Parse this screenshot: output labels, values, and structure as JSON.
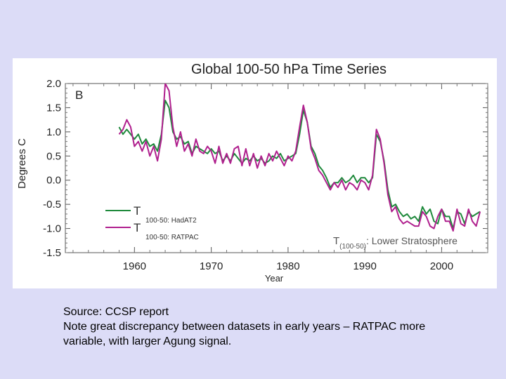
{
  "caption": {
    "line1": "Source: CCSP report",
    "line2": "Note great discrepancy between datasets in early years – RATPAC more",
    "line3": "variable, with larger Agung signal."
  },
  "chart_data": {
    "type": "line",
    "title": "Global 100-50 hPa Time Series",
    "panel_label": "B",
    "xlabel": "Year",
    "ylabel": "Degrees C",
    "xlim": [
      1951,
      2006
    ],
    "ylim": [
      -1.5,
      2.0
    ],
    "x_ticks": [
      1960,
      1970,
      1980,
      1990,
      2000
    ],
    "y_ticks": [
      2.0,
      1.5,
      1.0,
      0.5,
      0.0,
      -0.5,
      -1.0,
      -1.5
    ],
    "y_tick_labels": [
      "2.0",
      "1.5",
      "1.0",
      "0.5",
      "0.0",
      "-0.5",
      "-1.0",
      "-1.5"
    ],
    "grid": false,
    "legend_position": "bottom-left",
    "annotation": {
      "main": "T",
      "sub": "(100-50)",
      "rest": ": Lower Stratosphere"
    },
    "series": [
      {
        "legend_main": "T",
        "legend_sub": "100-50: HadAT2",
        "color": "#1f8a3c",
        "x": [
          1958.0,
          1958.5,
          1959.0,
          1959.5,
          1960.0,
          1960.5,
          1961.0,
          1961.5,
          1962.0,
          1962.5,
          1963.0,
          1963.5,
          1964.0,
          1964.5,
          1965.0,
          1965.5,
          1966.0,
          1966.5,
          1967.0,
          1967.5,
          1968.0,
          1968.5,
          1969.0,
          1969.5,
          1970.0,
          1970.5,
          1971.0,
          1971.5,
          1972.0,
          1972.5,
          1973.0,
          1973.5,
          1974.0,
          1974.5,
          1975.0,
          1975.5,
          1976.0,
          1976.5,
          1977.0,
          1977.5,
          1978.0,
          1978.5,
          1979.0,
          1979.5,
          1980.0,
          1980.5,
          1981.0,
          1981.5,
          1982.0,
          1982.5,
          1983.0,
          1983.5,
          1984.0,
          1984.5,
          1985.0,
          1985.5,
          1986.0,
          1986.5,
          1987.0,
          1987.5,
          1988.0,
          1988.5,
          1989.0,
          1989.5,
          1990.0,
          1990.5,
          1991.0,
          1991.5,
          1992.0,
          1992.5,
          1993.0,
          1993.5,
          1994.0,
          1994.5,
          1995.0,
          1995.5,
          1996.0,
          1996.5,
          1997.0,
          1997.5,
          1998.0,
          1998.5,
          1999.0,
          1999.5,
          2000.0,
          2000.5,
          2001.0,
          2001.5,
          2002.0,
          2002.5,
          2003.0,
          2003.5,
          2004.0,
          2004.5,
          2005.0
        ],
        "values": [
          1.1,
          0.95,
          1.05,
          0.95,
          0.85,
          0.95,
          0.75,
          0.85,
          0.7,
          0.75,
          0.6,
          0.95,
          1.65,
          1.5,
          1.0,
          0.85,
          0.9,
          0.75,
          0.8,
          0.55,
          0.7,
          0.65,
          0.6,
          0.55,
          0.65,
          0.55,
          0.6,
          0.4,
          0.5,
          0.4,
          0.55,
          0.45,
          0.35,
          0.45,
          0.4,
          0.5,
          0.4,
          0.45,
          0.35,
          0.4,
          0.5,
          0.45,
          0.55,
          0.4,
          0.45,
          0.5,
          0.55,
          0.95,
          1.45,
          1.2,
          0.7,
          0.55,
          0.3,
          0.2,
          0.05,
          -0.15,
          -0.05,
          -0.05,
          0.05,
          -0.05,
          0.0,
          0.1,
          -0.05,
          0.05,
          0.05,
          -0.05,
          0.05,
          0.95,
          0.8,
          0.4,
          -0.2,
          -0.55,
          -0.5,
          -0.65,
          -0.75,
          -0.7,
          -0.8,
          -0.75,
          -0.85,
          -0.55,
          -0.7,
          -0.6,
          -0.85,
          -0.9,
          -0.6,
          -0.75,
          -0.75,
          -1.0,
          -0.65,
          -0.7,
          -0.9,
          -0.65,
          -0.75,
          -0.7,
          -0.65
        ]
      },
      {
        "legend_main": "T",
        "legend_sub": "100-50: RATPAC",
        "color": "#b0208e",
        "x": [
          1958.0,
          1958.5,
          1959.0,
          1959.5,
          1960.0,
          1960.5,
          1961.0,
          1961.5,
          1962.0,
          1962.5,
          1963.0,
          1963.5,
          1964.0,
          1964.5,
          1965.0,
          1965.5,
          1966.0,
          1966.5,
          1967.0,
          1967.5,
          1968.0,
          1968.5,
          1969.0,
          1969.5,
          1970.0,
          1970.5,
          1971.0,
          1971.5,
          1972.0,
          1972.5,
          1973.0,
          1973.5,
          1974.0,
          1974.5,
          1975.0,
          1975.5,
          1976.0,
          1976.5,
          1977.0,
          1977.5,
          1978.0,
          1978.5,
          1979.0,
          1979.5,
          1980.0,
          1980.5,
          1981.0,
          1981.5,
          1982.0,
          1982.5,
          1983.0,
          1983.5,
          1984.0,
          1984.5,
          1985.0,
          1985.5,
          1986.0,
          1986.5,
          1987.0,
          1987.5,
          1988.0,
          1988.5,
          1989.0,
          1989.5,
          1990.0,
          1990.5,
          1991.0,
          1991.5,
          1992.0,
          1992.5,
          1993.0,
          1993.5,
          1994.0,
          1994.5,
          1995.0,
          1995.5,
          1996.0,
          1996.5,
          1997.0,
          1997.5,
          1998.0,
          1998.5,
          1999.0,
          1999.5,
          2000.0,
          2000.5,
          2001.0,
          2001.5,
          2002.0,
          2002.5,
          2003.0,
          2003.5,
          2004.0,
          2004.5,
          2005.0
        ],
        "values": [
          0.95,
          1.05,
          1.25,
          1.1,
          0.7,
          0.8,
          0.6,
          0.8,
          0.5,
          0.7,
          0.4,
          0.85,
          2.0,
          1.85,
          1.1,
          0.7,
          1.0,
          0.6,
          0.75,
          0.5,
          0.85,
          0.6,
          0.55,
          0.7,
          0.6,
          0.35,
          0.7,
          0.35,
          0.55,
          0.35,
          0.65,
          0.7,
          0.3,
          0.65,
          0.3,
          0.55,
          0.25,
          0.5,
          0.3,
          0.55,
          0.4,
          0.6,
          0.45,
          0.3,
          0.5,
          0.4,
          0.6,
          1.1,
          1.55,
          1.2,
          0.65,
          0.45,
          0.2,
          0.1,
          -0.05,
          -0.2,
          -0.05,
          -0.15,
          0.0,
          -0.2,
          -0.05,
          -0.1,
          -0.2,
          0.0,
          -0.05,
          -0.2,
          0.1,
          1.05,
          0.85,
          0.35,
          -0.3,
          -0.65,
          -0.55,
          -0.8,
          -0.9,
          -0.85,
          -0.9,
          -0.95,
          -0.95,
          -0.65,
          -0.75,
          -0.95,
          -1.0,
          -0.75,
          -0.6,
          -0.85,
          -0.85,
          -1.05,
          -0.6,
          -0.9,
          -0.95,
          -0.6,
          -0.85,
          -0.95,
          -0.65
        ]
      }
    ]
  }
}
